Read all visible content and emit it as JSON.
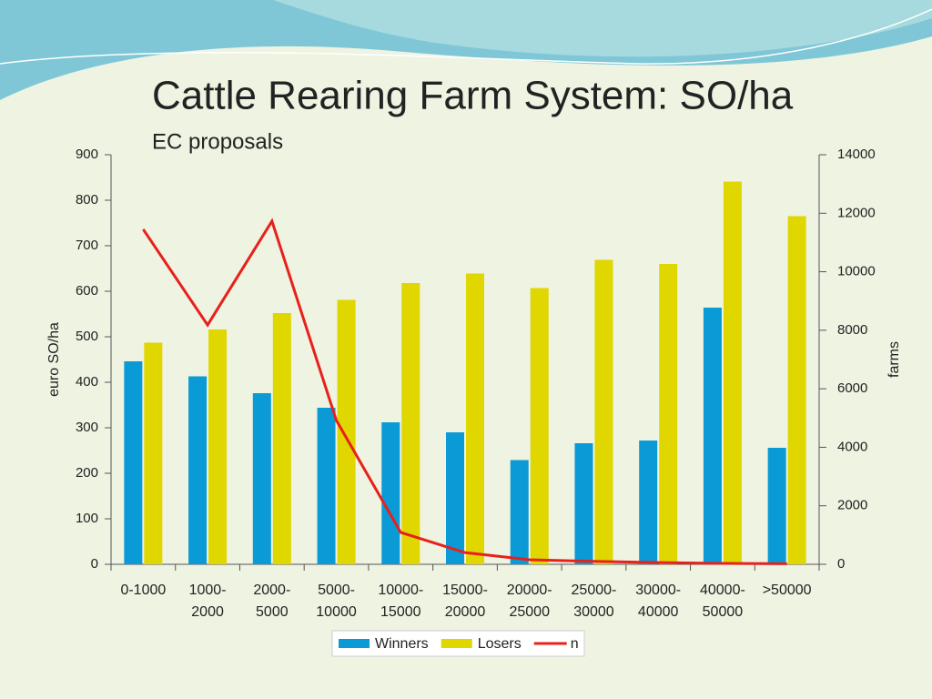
{
  "chart_data": {
    "type": "bar_line",
    "title": "Cattle Rearing Farm System: SO/ha",
    "subtitle": "EC proposals",
    "y_label": "euro SO/ha",
    "y2_label": "farms",
    "categories": [
      "0-1000",
      "1000- 2000",
      "2000- 5000",
      "5000- 10000",
      "10000- 15000",
      "15000- 20000",
      "20000- 25000",
      "25000- 30000",
      "30000- 40000",
      "40000- 50000",
      ">50000"
    ],
    "series": [
      {
        "name": "Winners",
        "type": "bar",
        "color": "#0a9ad6",
        "values": [
          446,
          413,
          376,
          344,
          312,
          290,
          229,
          266,
          272,
          564,
          256
        ]
      },
      {
        "name": "Losers",
        "type": "bar",
        "color": "#e0d600",
        "values": [
          487,
          516,
          552,
          581,
          618,
          639,
          607,
          669,
          660,
          841,
          765
        ]
      },
      {
        "name": "n",
        "type": "line",
        "axis": "y2",
        "color": "#e8201c",
        "values": [
          11450,
          8180,
          11730,
          4920,
          1090,
          400,
          155,
          100,
          60,
          30,
          20
        ]
      }
    ],
    "ylim": [
      0,
      900
    ],
    "yticks": [
      0,
      100,
      200,
      300,
      400,
      500,
      600,
      700,
      800,
      900
    ],
    "y2lim": [
      0,
      14000
    ],
    "y2ticks": [
      0,
      2000,
      4000,
      6000,
      8000,
      10000,
      12000,
      14000
    ],
    "legend": "bottom"
  }
}
